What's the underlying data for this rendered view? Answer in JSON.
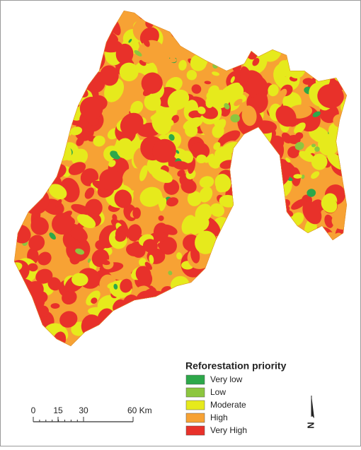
{
  "legend": {
    "title": "Reforestation priority",
    "items": [
      {
        "label": "Very low",
        "color": "#2da84a"
      },
      {
        "label": "Low",
        "color": "#8cc63f"
      },
      {
        "label": "Moderate",
        "color": "#e6ea1c"
      },
      {
        "label": "High",
        "color": "#f7a234"
      },
      {
        "label": "Very High",
        "color": "#e8312a"
      }
    ]
  },
  "scale_bar": {
    "labels": [
      "0",
      "15",
      "30",
      "60 Km"
    ]
  },
  "north_arrow": {
    "label": "N"
  }
}
